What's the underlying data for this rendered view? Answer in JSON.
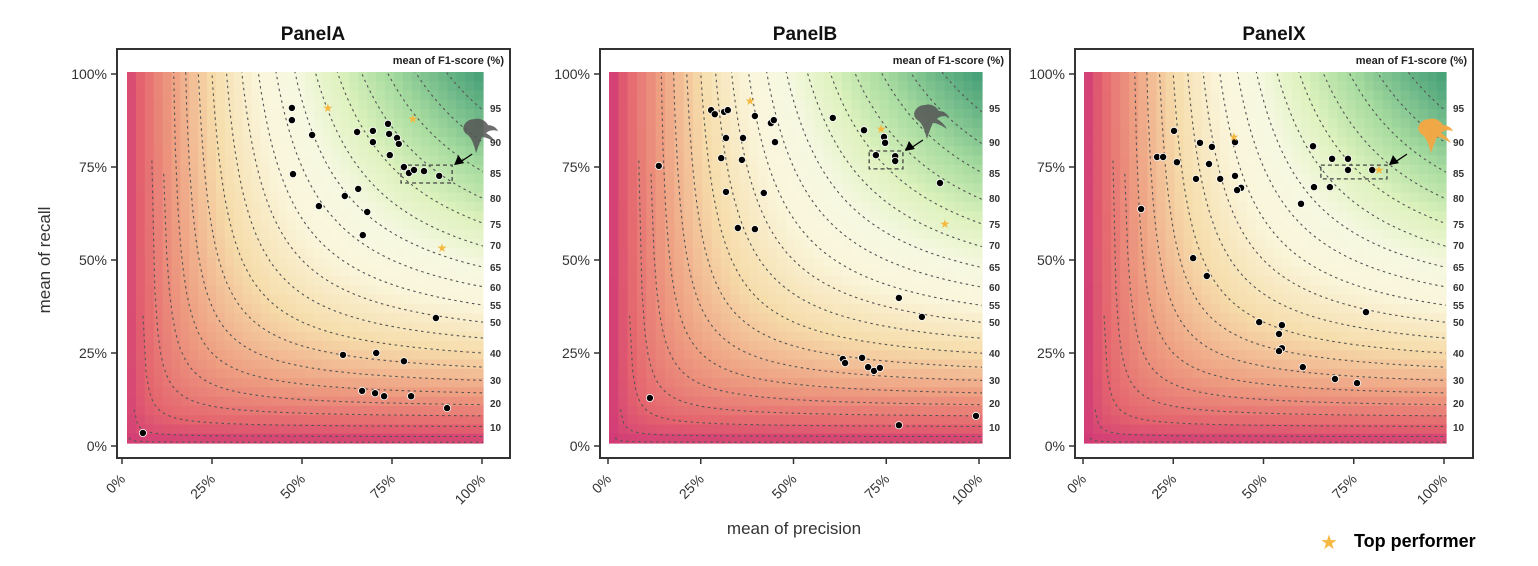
{
  "legend": {
    "star_label": "Top performer",
    "star_icon": "star-icon",
    "star_color": "#f5b942"
  },
  "colors": {
    "point": "#000000",
    "star": "#f5b942",
    "mascot_dark": "#555555",
    "mascot_orange": "#f5a742",
    "contour": "#555555"
  },
  "chart_data": [
    {
      "type": "scatter",
      "title": "PanelA",
      "xlabel": "",
      "ylabel": "mean of recall",
      "colorbar_title": "mean of F1-score (%)",
      "xlim": [
        0,
        100
      ],
      "ylim": [
        0,
        100
      ],
      "xticks": [
        "0%",
        "25%",
        "50%",
        "75%",
        "100%"
      ],
      "yticks": [
        "0%",
        "25%",
        "50%",
        "75%",
        "100%"
      ],
      "f1_contour_labels": [
        "95",
        "90",
        "85",
        "80",
        "75",
        "70",
        "65",
        "60",
        "55",
        "50",
        "40",
        "30",
        "20",
        "10"
      ],
      "mascot": "dark",
      "points": [
        [
          47.2,
          90.9
        ],
        [
          47.2,
          87.6
        ],
        [
          52.8,
          83.6
        ],
        [
          47.5,
          73.1
        ],
        [
          65.3,
          84.4
        ],
        [
          69.7,
          84.7
        ],
        [
          69.7,
          81.7
        ],
        [
          73.9,
          86.6
        ],
        [
          74.2,
          83.9
        ],
        [
          76.4,
          82.8
        ],
        [
          76.9,
          81.2
        ],
        [
          74.4,
          78.2
        ],
        [
          78.3,
          75.0
        ],
        [
          79.7,
          73.4
        ],
        [
          81.1,
          74.2
        ],
        [
          83.9,
          73.9
        ],
        [
          88.1,
          72.6
        ],
        [
          65.6,
          69.1
        ],
        [
          61.9,
          67.2
        ],
        [
          54.7,
          64.5
        ],
        [
          68.1,
          62.9
        ],
        [
          66.9,
          56.7
        ],
        [
          87.2,
          34.4
        ],
        [
          61.4,
          24.5
        ],
        [
          70.6,
          25.0
        ],
        [
          78.3,
          22.8
        ],
        [
          66.7,
          14.8
        ],
        [
          70.3,
          14.2
        ],
        [
          72.8,
          13.4
        ],
        [
          80.3,
          13.4
        ],
        [
          90.3,
          10.2
        ],
        [
          5.8,
          3.5
        ]
      ],
      "top_performers": [
        [
          57.2,
          90.9
        ],
        [
          80.8,
          87.9
        ],
        [
          88.9,
          53.2
        ]
      ],
      "highlight_box": {
        "x": [
          77.5,
          91.7
        ],
        "y": [
          70.7,
          75.5
        ]
      }
    },
    {
      "type": "scatter",
      "title": "PanelB",
      "xlabel": "mean of precision",
      "ylabel": "",
      "colorbar_title": "mean of F1-score (%)",
      "xlim": [
        0,
        100
      ],
      "ylim": [
        0,
        100
      ],
      "xticks": [
        "0%",
        "25%",
        "50%",
        "75%",
        "100%"
      ],
      "yticks": [
        "0%",
        "25%",
        "50%",
        "75%",
        "100%"
      ],
      "f1_contour_labels": [
        "95",
        "90",
        "85",
        "80",
        "75",
        "70",
        "65",
        "60",
        "55",
        "50",
        "40",
        "30",
        "20",
        "10"
      ],
      "mascot": "dark",
      "points": [
        [
          13.7,
          75.3
        ],
        [
          27.8,
          90.3
        ],
        [
          28.8,
          89.2
        ],
        [
          31.3,
          89.8
        ],
        [
          32.3,
          90.3
        ],
        [
          39.6,
          88.7
        ],
        [
          43.9,
          86.8
        ],
        [
          44.7,
          87.6
        ],
        [
          31.8,
          82.8
        ],
        [
          36.4,
          82.8
        ],
        [
          45.0,
          81.7
        ],
        [
          30.5,
          77.4
        ],
        [
          36.1,
          76.9
        ],
        [
          31.8,
          68.3
        ],
        [
          42.0,
          68.0
        ],
        [
          35.0,
          58.6
        ],
        [
          39.6,
          58.3
        ],
        [
          60.6,
          88.2
        ],
        [
          69.0,
          84.9
        ],
        [
          74.4,
          83.1
        ],
        [
          74.7,
          81.5
        ],
        [
          72.2,
          78.2
        ],
        [
          77.4,
          77.9
        ],
        [
          77.4,
          76.6
        ],
        [
          89.5,
          70.7
        ],
        [
          78.4,
          39.8
        ],
        [
          84.6,
          34.7
        ],
        [
          63.3,
          23.4
        ],
        [
          63.9,
          22.3
        ],
        [
          68.5,
          23.7
        ],
        [
          70.1,
          21.2
        ],
        [
          71.7,
          20.2
        ],
        [
          73.3,
          21.0
        ],
        [
          11.3,
          12.9
        ],
        [
          78.4,
          5.6
        ],
        [
          99.2,
          8.1
        ]
      ],
      "top_performers": [
        [
          38.3,
          92.7
        ],
        [
          73.6,
          85.2
        ],
        [
          90.8,
          59.7
        ]
      ],
      "highlight_box": {
        "x": [
          70.4,
          79.5
        ],
        "y": [
          74.5,
          79.3
        ]
      }
    },
    {
      "type": "scatter",
      "title": "PanelX",
      "xlabel": "",
      "ylabel": "",
      "colorbar_title": "mean of F1-score (%)",
      "xlim": [
        0,
        100
      ],
      "ylim": [
        0,
        100
      ],
      "xticks": [
        "0%",
        "25%",
        "50%",
        "75%",
        "100%"
      ],
      "yticks": [
        "0%",
        "25%",
        "50%",
        "75%",
        "100%"
      ],
      "f1_contour_labels": [
        "95",
        "90",
        "85",
        "80",
        "75",
        "70",
        "65",
        "60",
        "55",
        "50",
        "40",
        "30",
        "20",
        "10"
      ],
      "mascot": "orange",
      "points": [
        [
          25.2,
          84.7
        ],
        [
          20.5,
          77.7
        ],
        [
          22.2,
          77.7
        ],
        [
          26.0,
          76.3
        ],
        [
          32.4,
          81.5
        ],
        [
          35.7,
          80.4
        ],
        [
          34.9,
          75.8
        ],
        [
          31.3,
          71.8
        ],
        [
          38.0,
          71.8
        ],
        [
          42.1,
          81.7
        ],
        [
          42.1,
          72.6
        ],
        [
          43.8,
          69.4
        ],
        [
          42.7,
          68.8
        ],
        [
          16.1,
          63.7
        ],
        [
          63.7,
          80.6
        ],
        [
          69.0,
          77.2
        ],
        [
          73.4,
          77.2
        ],
        [
          73.4,
          74.2
        ],
        [
          80.1,
          74.2
        ],
        [
          64.0,
          69.6
        ],
        [
          68.4,
          69.6
        ],
        [
          60.4,
          65.1
        ],
        [
          30.5,
          50.5
        ],
        [
          34.3,
          45.7
        ],
        [
          78.4,
          36.0
        ],
        [
          48.8,
          33.3
        ],
        [
          55.1,
          32.5
        ],
        [
          54.3,
          30.1
        ],
        [
          55.1,
          26.3
        ],
        [
          54.3,
          25.5
        ],
        [
          60.9,
          21.2
        ],
        [
          69.8,
          18.0
        ],
        [
          75.9,
          16.9
        ]
      ],
      "top_performers": [
        [
          41.8,
          83.1
        ],
        [
          82.0,
          74.2
        ]
      ],
      "highlight_box": {
        "x": [
          65.9,
          84.2
        ],
        "y": [
          71.8,
          75.5
        ]
      }
    }
  ]
}
